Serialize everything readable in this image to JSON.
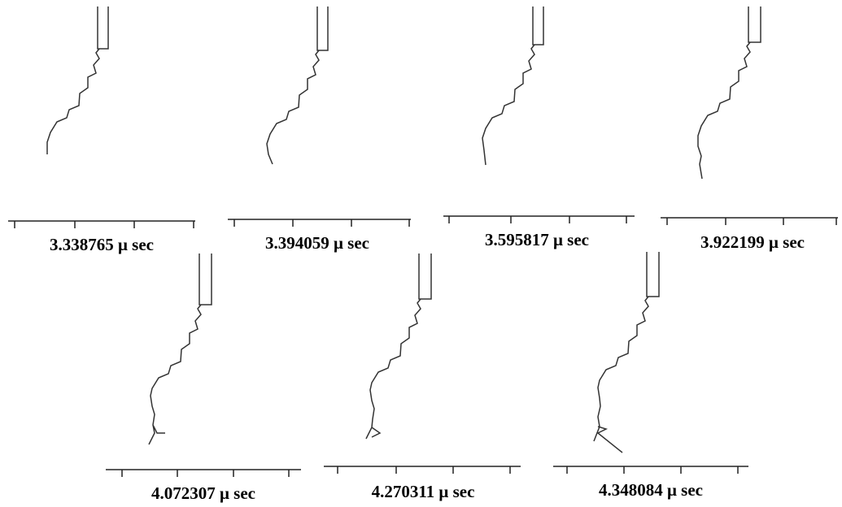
{
  "panels": [
    {
      "label": "3.338765 μ sec"
    },
    {
      "label": "3.394059 μ sec"
    },
    {
      "label": "3.595817 μ sec"
    },
    {
      "label": "3.922199 μ sec"
    },
    {
      "label": "4.072307 μ sec"
    },
    {
      "label": "4.270311 μ sec"
    },
    {
      "label": "4.348084 μ sec"
    }
  ]
}
